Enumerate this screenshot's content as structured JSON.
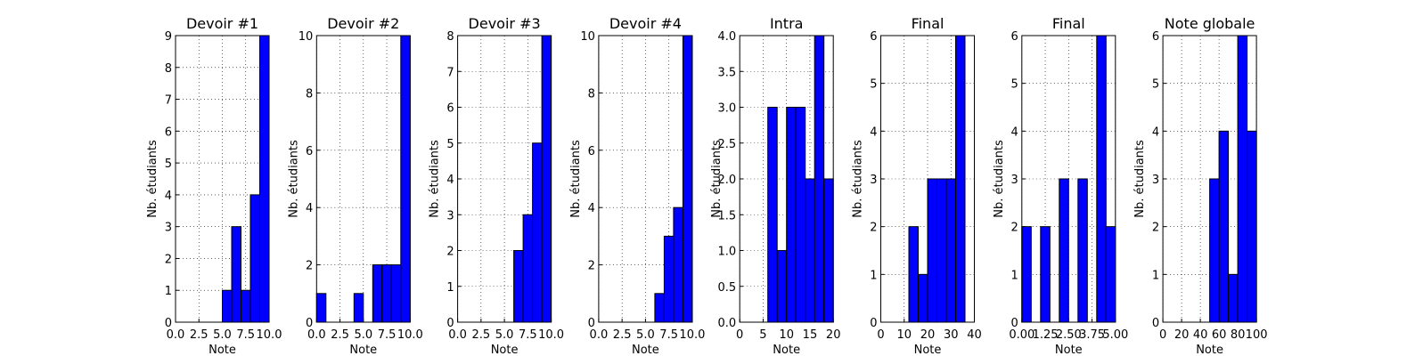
{
  "chart_data": [
    {
      "type": "histogram",
      "title": "Devoir #1",
      "xlabel": "Note",
      "ylabel": "Nb. étudiants",
      "color": "#0000ff",
      "grid": true,
      "bins": [
        0,
        1,
        2,
        3,
        4,
        5,
        6,
        7,
        8,
        9,
        10
      ],
      "values": [
        0,
        0,
        0,
        0,
        0,
        1,
        3,
        1,
        4,
        9
      ],
      "xlim": [
        0,
        10
      ],
      "ylim": [
        0,
        9
      ],
      "xticks": [
        {
          "value": 0,
          "label": "0.0"
        },
        2.5,
        {
          "value": 5,
          "label": "5.0"
        },
        7.5,
        {
          "value": 10,
          "label": "10.0"
        }
      ],
      "yticks": [
        0,
        1,
        2,
        3,
        4,
        5,
        6,
        7,
        8,
        9
      ]
    },
    {
      "type": "histogram",
      "title": "Devoir #2",
      "xlabel": "Note",
      "ylabel": "Nb. étudiants",
      "color": "#0000ff",
      "grid": true,
      "bins": [
        0,
        1,
        2,
        3,
        4,
        5,
        6,
        7,
        8,
        9,
        10
      ],
      "values": [
        1,
        0,
        0,
        0,
        1,
        0,
        2,
        2,
        2,
        10
      ],
      "xlim": [
        0,
        10
      ],
      "ylim": [
        0,
        10
      ],
      "xticks": [
        {
          "value": 0,
          "label": "0.0"
        },
        2.5,
        {
          "value": 5,
          "label": "5.0"
        },
        7.5,
        {
          "value": 10,
          "label": "10.0"
        }
      ],
      "yticks": [
        0,
        2,
        4,
        6,
        8,
        10
      ]
    },
    {
      "type": "histogram",
      "title": "Devoir #3",
      "xlabel": "Note",
      "ylabel": "Nb. étudiants",
      "color": "#0000ff",
      "grid": true,
      "bins": [
        0,
        1,
        2,
        3,
        4,
        5,
        6,
        7,
        8,
        9,
        10
      ],
      "values": [
        0,
        0,
        0,
        0,
        0,
        0,
        2,
        3,
        5,
        8
      ],
      "xlim": [
        0,
        10
      ],
      "ylim": [
        0,
        8
      ],
      "xticks": [
        {
          "value": 0,
          "label": "0.0"
        },
        2.5,
        {
          "value": 5,
          "label": "5.0"
        },
        7.5,
        {
          "value": 10,
          "label": "10.0"
        }
      ],
      "yticks": [
        0,
        1,
        2,
        3,
        4,
        5,
        6,
        7,
        8
      ]
    },
    {
      "type": "histogram",
      "title": "Devoir #4",
      "xlabel": "Note",
      "ylabel": "Nb. étudiants",
      "color": "#0000ff",
      "grid": true,
      "bins": [
        0,
        1,
        2,
        3,
        4,
        5,
        6,
        7,
        8,
        9,
        10
      ],
      "values": [
        0,
        0,
        0,
        0,
        0,
        0,
        1,
        3,
        4,
        10
      ],
      "xlim": [
        0,
        10
      ],
      "ylim": [
        0,
        10
      ],
      "xticks": [
        {
          "value": 0,
          "label": "0.0"
        },
        2.5,
        {
          "value": 5,
          "label": "5.0"
        },
        7.5,
        {
          "value": 10,
          "label": "10.0"
        }
      ],
      "yticks": [
        0,
        2,
        4,
        6,
        8,
        10
      ]
    },
    {
      "type": "histogram",
      "title": "Intra",
      "xlabel": "Note",
      "ylabel": "Nb. étudiants",
      "color": "#0000ff",
      "grid": true,
      "bins": [
        0,
        2,
        4,
        6,
        8,
        10,
        12,
        14,
        16,
        18,
        20
      ],
      "values": [
        0,
        0,
        0,
        3,
        1,
        3,
        3,
        2,
        4,
        2
      ],
      "xlim": [
        0,
        20
      ],
      "ylim": [
        0,
        4
      ],
      "xticks": [
        0,
        5,
        10,
        15,
        20
      ],
      "yticks": [
        {
          "value": 0,
          "label": "0.0"
        },
        0.5,
        {
          "value": 1,
          "label": "1.0"
        },
        1.5,
        {
          "value": 2,
          "label": "2.0"
        },
        2.5,
        {
          "value": 3,
          "label": "3.0"
        },
        3.5,
        {
          "value": 4,
          "label": "4.0"
        }
      ]
    },
    {
      "type": "histogram",
      "title": "Final",
      "xlabel": "Note",
      "ylabel": "Nb. étudiants",
      "color": "#0000ff",
      "grid": true,
      "bins": [
        0,
        4,
        8,
        12,
        16,
        20,
        24,
        28,
        32,
        36
      ],
      "values": [
        0,
        0,
        0,
        2,
        1,
        3,
        3,
        3,
        6
      ],
      "xlim": [
        0,
        40
      ],
      "ylim": [
        0,
        6
      ],
      "xticks": [
        0,
        10,
        20,
        30,
        40
      ],
      "yticks": [
        0,
        1,
        2,
        3,
        4,
        5,
        6
      ]
    },
    {
      "type": "histogram",
      "title": "Final",
      "xlabel": "Note",
      "ylabel": "Nb. étudiants",
      "color": "#0000ff",
      "grid": true,
      "bins": [
        0,
        0.5,
        1,
        1.5,
        2,
        2.5,
        3,
        3.5,
        4,
        4.5,
        5
      ],
      "values": [
        2,
        0,
        2,
        0,
        3,
        0,
        3,
        0,
        6,
        2
      ],
      "xlim": [
        0,
        5
      ],
      "ylim": [
        0,
        6
      ],
      "xticks": [
        {
          "value": 0,
          "label": "0.00"
        },
        1.25,
        {
          "value": 2.5,
          "label": "2.50"
        },
        3.75,
        {
          "value": 5,
          "label": "5.00"
        }
      ],
      "yticks": [
        0,
        1,
        2,
        3,
        4,
        5,
        6
      ]
    },
    {
      "type": "histogram",
      "title": "Note globale",
      "xlabel": "Note",
      "ylabel": "Nb. étudiants",
      "color": "#0000ff",
      "grid": true,
      "bins": [
        0,
        10,
        20,
        30,
        40,
        50,
        60,
        70,
        80,
        90,
        100
      ],
      "values": [
        0,
        0,
        0,
        0,
        0,
        3,
        4,
        1,
        6,
        4
      ],
      "xlim": [
        0,
        100
      ],
      "ylim": [
        0,
        6
      ],
      "xticks": [
        0,
        20,
        40,
        60,
        80,
        100
      ],
      "yticks": [
        0,
        1,
        2,
        3,
        4,
        5,
        6
      ]
    }
  ]
}
